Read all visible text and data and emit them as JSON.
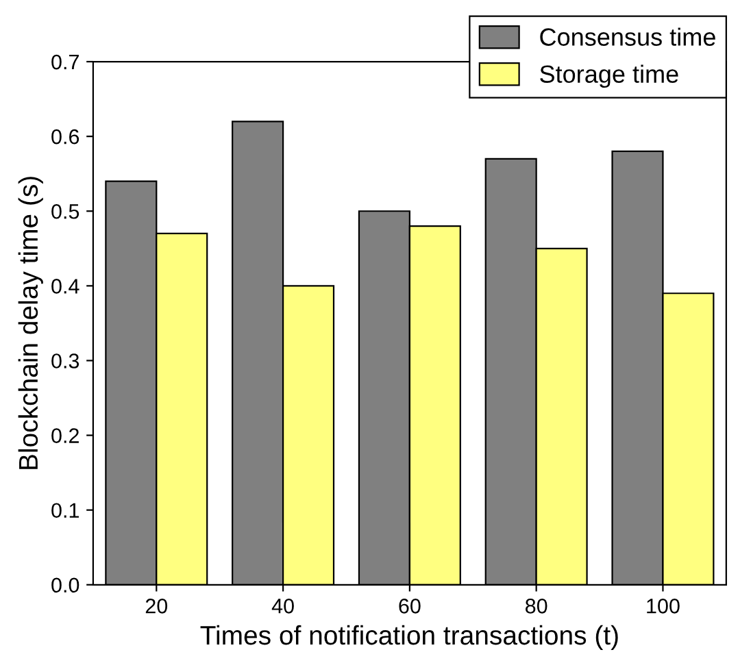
{
  "chart_data": {
    "type": "bar",
    "xlabel": "Times of notification transactions (t)",
    "ylabel": "Blockchain delay time (s)",
    "categories": [
      "20",
      "40",
      "60",
      "80",
      "100"
    ],
    "series": [
      {
        "name": "Consensus time",
        "color": "#808080",
        "values": [
          0.54,
          0.62,
          0.5,
          0.57,
          0.58
        ]
      },
      {
        "name": "Storage time",
        "color": "#ffff80",
        "values": [
          0.47,
          0.4,
          0.48,
          0.45,
          0.39
        ]
      }
    ],
    "ylim": [
      0,
      0.7
    ],
    "yticks": [
      {
        "value": 0,
        "label": "0.0"
      },
      0.1,
      0.2,
      0.3,
      0.4,
      0.5,
      0.6,
      0.7
    ],
    "grid": false,
    "legend": "top right"
  }
}
